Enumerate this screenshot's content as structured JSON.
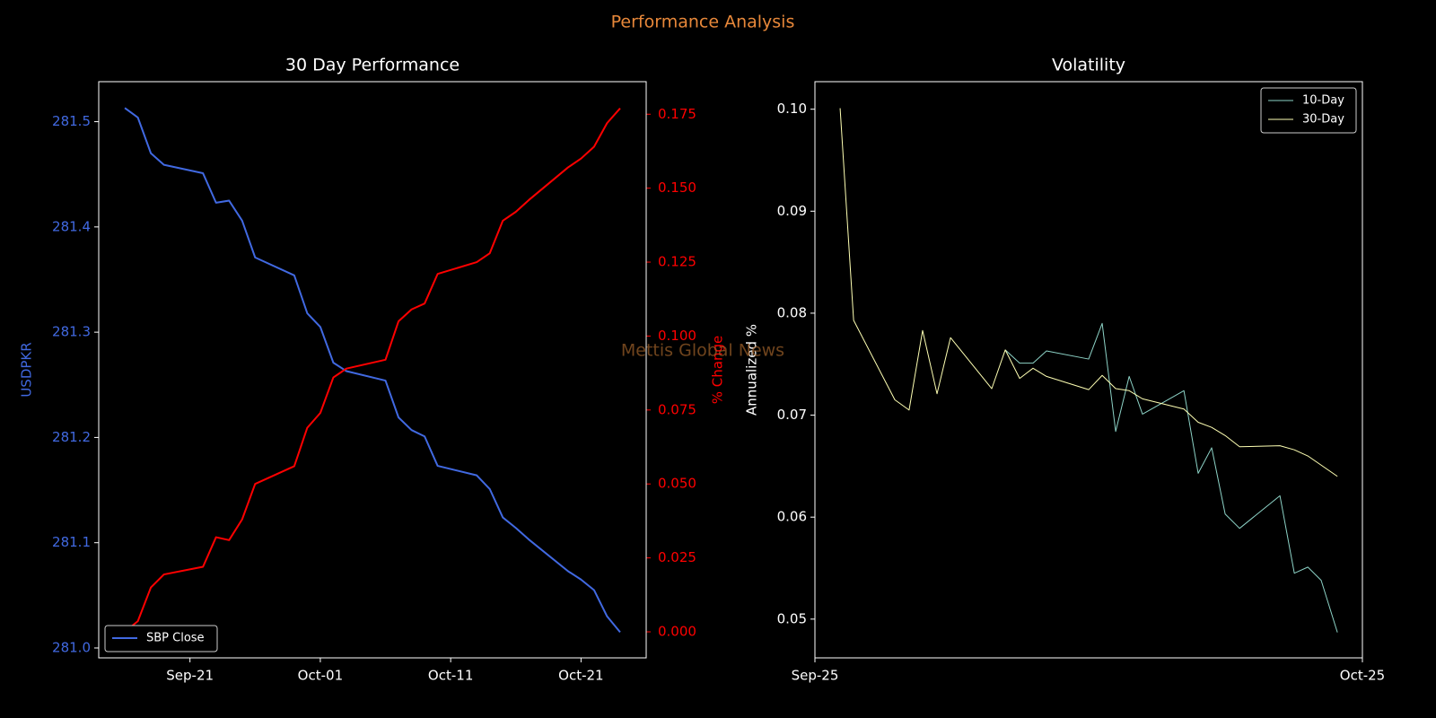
{
  "title": "Performance Analysis",
  "watermark": "Mettis Global News",
  "chart_data": [
    {
      "type": "line",
      "title": "30 Day Performance",
      "x": [
        "09-16",
        "09-17",
        "09-18",
        "09-19",
        "09-22",
        "09-23",
        "09-24",
        "09-25",
        "09-26",
        "09-29",
        "09-30",
        "10-01",
        "10-02",
        "10-03",
        "10-06",
        "10-07",
        "10-08",
        "10-09",
        "10-10",
        "10-13",
        "10-14",
        "10-15",
        "10-16",
        "10-17",
        "10-20",
        "10-21",
        "10-22",
        "10-23",
        "10-24"
      ],
      "xlim": [
        "09-14",
        "10-26"
      ],
      "xticks": [
        {
          "value": "09-21",
          "label": "Sep-21"
        },
        {
          "value": "10-01",
          "label": "Oct-01"
        },
        {
          "value": "10-11",
          "label": "Oct-11"
        },
        {
          "value": "10-21",
          "label": "Oct-21"
        }
      ],
      "ylabel": "USDPKR",
      "ycolor": "#4169e1",
      "ylim": [
        280.9906,
        281.538
      ],
      "yticks": [
        {
          "value": 281,
          "label": "281.0"
        },
        281.1,
        281.2,
        281.3,
        281.4,
        281.5
      ],
      "y2label": "% Change",
      "y2color": "#ff0000",
      "y2lim": [
        -0.0088,
        0.186
      ],
      "y2ticks": [
        {
          "value": 0,
          "label": "0.000"
        },
        {
          "value": 0.025,
          "label": "0.025"
        },
        {
          "value": 0.05,
          "label": "0.050"
        },
        {
          "value": 0.075,
          "label": "0.075"
        },
        {
          "value": 0.1,
          "label": "0.100"
        },
        {
          "value": 0.125,
          "label": "0.125"
        },
        {
          "value": 0.15,
          "label": "0.150"
        },
        {
          "value": 0.175,
          "label": "0.175"
        }
      ],
      "legend": "lower left",
      "line_width": 2,
      "series": [
        {
          "name": "SBP Close",
          "color": "#4169e1",
          "values": [
            281.513,
            281.504,
            281.47,
            281.459,
            281.451,
            281.423,
            281.425,
            281.406,
            281.371,
            281.354,
            281.318,
            281.305,
            281.271,
            281.263,
            281.254,
            281.219,
            281.207,
            281.201,
            281.173,
            281.164,
            281.151,
            281.124,
            281.114,
            281.103,
            281.073,
            281.065,
            281.055,
            281.03,
            281.015
          ]
        },
        {
          "color": "#ff0000",
          "axis": "y2",
          "values": [
            0,
            0.0036,
            0.015,
            0.0194,
            0.022,
            0.032,
            0.031,
            0.038,
            0.05,
            0.056,
            0.069,
            0.074,
            0.086,
            0.089,
            0.092,
            0.105,
            0.109,
            0.111,
            0.121,
            0.125,
            0.128,
            0.139,
            0.142,
            0.146,
            0.157,
            0.16,
            0.164,
            0.172,
            0.177
          ]
        }
      ]
    },
    {
      "type": "line",
      "title": "Volatility",
      "x": [
        1.38,
        2.12,
        4.38,
        5.16,
        5.9,
        6.69,
        7.43,
        9.69,
        10.43,
        11.22,
        11.95,
        12.69,
        15.0,
        15.74,
        16.48,
        17.22,
        17.95,
        20.22,
        21.0,
        21.74,
        22.48,
        23.27,
        25.48,
        26.27,
        27.01,
        27.74,
        28.63
      ],
      "xlim": [
        0,
        30
      ],
      "xticks": [
        {
          "value": 0,
          "label": "Sep-25"
        },
        {
          "value": 30,
          "label": "Oct-25"
        }
      ],
      "ylabel": "Annualized %",
      "ylim": [
        0.0462,
        0.1027
      ],
      "yticks": [
        0.05,
        0.06,
        0.07,
        0.08,
        0.09,
        {
          "value": 0.1,
          "label": "0.10"
        }
      ],
      "legend": "upper right",
      "line_width": 1,
      "series": [
        {
          "name": "10-Day",
          "color": "#8dd3c7",
          "values": [
            null,
            null,
            null,
            null,
            null,
            null,
            null,
            null,
            0.0764,
            0.0751,
            0.0751,
            0.0763,
            0.0755,
            0.079,
            0.0684,
            0.0738,
            0.0701,
            0.0724,
            0.0643,
            0.0668,
            0.0603,
            0.0589,
            0.0621,
            0.0545,
            0.0551,
            0.0538,
            0.0487
          ]
        },
        {
          "name": "30-Day",
          "color": "#feffb3",
          "values": [
            0.1001,
            0.0793,
            0.0715,
            0.0705,
            0.0783,
            0.0721,
            0.0776,
            0.0726,
            0.0764,
            0.0736,
            0.0746,
            0.0738,
            0.0725,
            0.0739,
            0.0726,
            0.0724,
            0.0716,
            0.0706,
            0.0693,
            0.0688,
            0.068,
            0.0669,
            0.067,
            0.0666,
            0.066,
            0.0651,
            0.064
          ]
        }
      ]
    }
  ]
}
